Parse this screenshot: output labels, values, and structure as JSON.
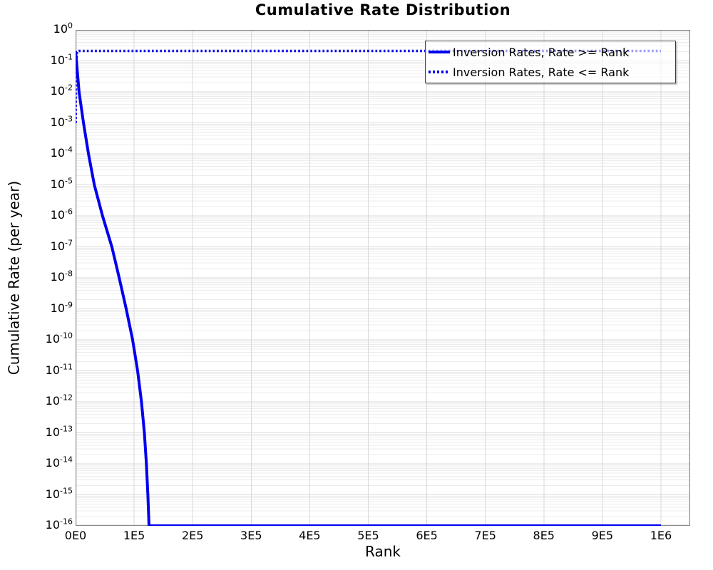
{
  "chart_data": {
    "type": "line",
    "title": "Cumulative Rate Distribution",
    "xlabel": "Rank",
    "ylabel": "Cumulative Rate (per year)",
    "x_axis": {
      "min": 0,
      "max": 1050000,
      "ticks": [
        0,
        100000,
        200000,
        300000,
        400000,
        500000,
        600000,
        700000,
        800000,
        900000,
        1000000
      ],
      "tick_labels": [
        "0E0",
        "1E5",
        "2E5",
        "3E5",
        "4E5",
        "5E5",
        "6E5",
        "7E5",
        "8E5",
        "9E5",
        "1E6"
      ]
    },
    "y_axis": {
      "scale": "log10",
      "min": 1e-16,
      "max": 1,
      "tick_exponents": [
        0,
        -1,
        -2,
        -3,
        -4,
        -5,
        -6,
        -7,
        -8,
        -9,
        -10,
        -11,
        -12,
        -13,
        -14,
        -15,
        -16
      ]
    },
    "grid": {
      "major_color": "#d9d9d9",
      "minor_color": "#ececec",
      "spine_color": "#8a8a8a",
      "vertical_majors": true,
      "horizontal_log_minors": true
    },
    "legend": {
      "position": "top-right",
      "border_color": "#3a3a3a"
    },
    "series": [
      {
        "name": "Inversion Rates, Rate >= Rank",
        "color": "#0000ee",
        "style": "solid",
        "width": 4,
        "points": [
          [
            0,
            0.21
          ],
          [
            6000,
            0.01
          ],
          [
            13500,
            0.001
          ],
          [
            22000,
            0.0001
          ],
          [
            32000,
            1e-05
          ],
          [
            46000,
            1e-06
          ],
          [
            62000,
            1e-07
          ],
          [
            74500,
            1e-08
          ],
          [
            86500,
            1e-09
          ],
          [
            97500,
            1e-10
          ],
          [
            106000,
            1e-11
          ],
          [
            112500,
            1e-12
          ],
          [
            117500,
            1e-13
          ],
          [
            121000,
            1e-14
          ],
          [
            123500,
            1e-15
          ],
          [
            125500,
            1e-16
          ],
          [
            1000000,
            1e-16
          ]
        ]
      },
      {
        "name": "Inversion Rates, Rate <= Rank",
        "color": "#0000ee",
        "style": "dotted",
        "width": 3.6,
        "points": [
          [
            100,
            0.001
          ],
          [
            500,
            0.01
          ],
          [
            1200,
            0.1
          ],
          [
            2500,
            0.2
          ],
          [
            6000,
            0.21
          ],
          [
            1000000,
            0.21
          ]
        ]
      }
    ]
  }
}
